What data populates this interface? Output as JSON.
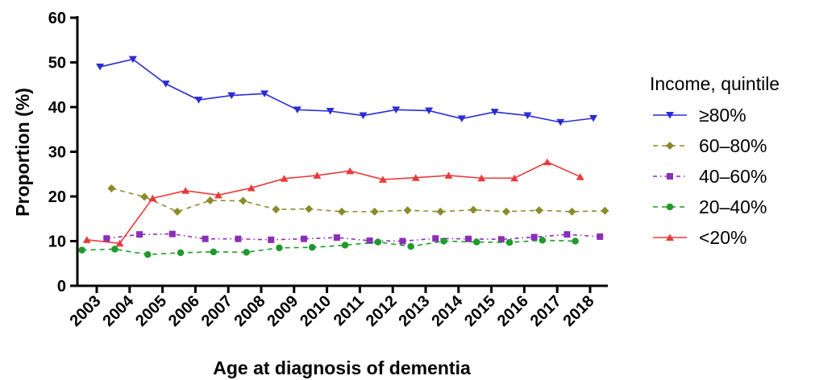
{
  "chart_data": {
    "type": "line",
    "xlabel": "Age at diagnosis of dementia",
    "ylabel": "Proportion (%)",
    "ylim": [
      0,
      60
    ],
    "yticks": [
      0,
      10,
      20,
      30,
      40,
      50,
      60
    ],
    "categories": [
      "2003",
      "2004",
      "2005",
      "2006",
      "2007",
      "2008",
      "2009",
      "2010",
      "2011",
      "2012",
      "2013",
      "2014",
      "2015",
      "2016",
      "2017",
      "2018"
    ],
    "legend_title": "Income, quintile",
    "legend_position": "right",
    "grid": false,
    "series": [
      {
        "name": "≥80%",
        "color": "#2b2bd6",
        "marker": "triangle-down",
        "dash": "solid",
        "values": [
          49.0,
          50.7,
          45.2,
          41.6,
          42.6,
          43.0,
          39.4,
          39.1,
          38.1,
          39.4,
          39.2,
          37.4,
          38.9,
          38.1,
          36.6,
          37.5
        ]
      },
      {
        "name": "60–80%",
        "color": "#8a8a2a",
        "marker": "diamond",
        "dash": "dashed",
        "values": [
          21.8,
          19.9,
          16.6,
          19.1,
          19.0,
          17.1,
          17.2,
          16.6,
          16.6,
          16.9,
          16.6,
          17.0,
          16.6,
          16.9,
          16.6,
          16.8
        ]
      },
      {
        "name": "40–60%",
        "color": "#8a2fb8",
        "marker": "square",
        "dash": "dashdot",
        "values": [
          10.6,
          11.5,
          11.6,
          10.5,
          10.5,
          10.3,
          10.5,
          10.8,
          10.1,
          10.0,
          10.6,
          10.5,
          10.4,
          10.9,
          11.5,
          11.0
        ]
      },
      {
        "name": "20–40%",
        "color": "#1f9a2a",
        "marker": "circle",
        "dash": "dashed",
        "values": [
          8.0,
          8.2,
          7.0,
          7.4,
          7.6,
          7.5,
          8.5,
          8.6,
          9.1,
          9.8,
          8.8,
          10.0,
          9.8,
          9.7,
          10.2,
          10.0
        ]
      },
      {
        "name": "<20%",
        "color": "#e83a3a",
        "marker": "triangle-up",
        "dash": "solid",
        "values": [
          10.3,
          9.5,
          19.6,
          21.3,
          20.3,
          21.9,
          24.0,
          24.7,
          25.7,
          23.8,
          24.2,
          24.7,
          24.1,
          24.1,
          27.7,
          24.4
        ]
      }
    ]
  }
}
